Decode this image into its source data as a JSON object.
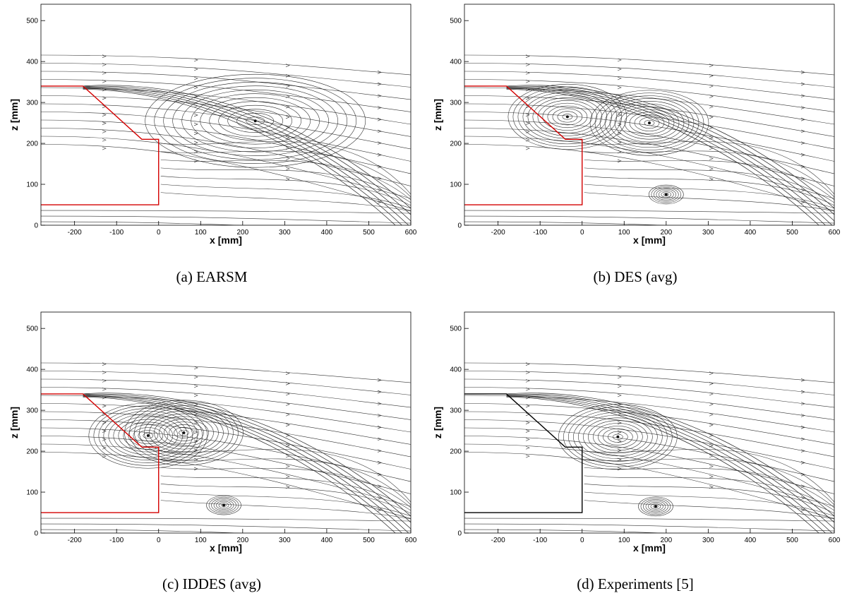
{
  "figure": {
    "panels": [
      {
        "id": "a",
        "caption": "(a)  EARSM",
        "outline_color": "#d40000"
      },
      {
        "id": "b",
        "caption": "(b)  DES (avg)",
        "outline_color": "#d40000"
      },
      {
        "id": "c",
        "caption": "(c)  IDDES (avg)",
        "outline_color": "#d40000"
      },
      {
        "id": "d",
        "caption": "(d)  Experiments [5]",
        "outline_color": "#000000"
      }
    ]
  },
  "chart_data": [
    {
      "type": "streamline-plot",
      "title": "(a)  EARSM",
      "xlabel": "x [mm]",
      "ylabel": "z [mm]",
      "xlim": [
        -280,
        600
      ],
      "ylim": [
        0,
        540
      ],
      "xticks": [
        -200,
        -100,
        0,
        100,
        200,
        300,
        400,
        500,
        600
      ],
      "yticks": [
        0,
        100,
        200,
        300,
        400,
        500
      ],
      "body_outline": [
        [
          -280,
          340
        ],
        [
          -180,
          340
        ],
        [
          -40,
          210
        ],
        [
          0,
          210
        ],
        [
          0,
          50
        ],
        [
          -280,
          50
        ]
      ],
      "vortices": [
        {
          "x": 230,
          "z": 255
        }
      ]
    },
    {
      "type": "streamline-plot",
      "title": "(b)  DES (avg)",
      "xlabel": "x [mm]",
      "ylabel": "z [mm]",
      "xlim": [
        -280,
        600
      ],
      "ylim": [
        0,
        540
      ],
      "xticks": [
        -200,
        -100,
        0,
        100,
        200,
        300,
        400,
        500,
        600
      ],
      "yticks": [
        0,
        100,
        200,
        300,
        400,
        500
      ],
      "body_outline": [
        [
          -280,
          340
        ],
        [
          -180,
          340
        ],
        [
          -40,
          210
        ],
        [
          0,
          210
        ],
        [
          0,
          50
        ],
        [
          -280,
          50
        ]
      ],
      "vortices": [
        {
          "x": -35,
          "z": 265
        },
        {
          "x": 160,
          "z": 250
        },
        {
          "x": 200,
          "z": 75
        }
      ]
    },
    {
      "type": "streamline-plot",
      "title": "(c)  IDDES (avg)",
      "xlabel": "x [mm]",
      "ylabel": "z [mm]",
      "xlim": [
        -280,
        600
      ],
      "ylim": [
        0,
        540
      ],
      "xticks": [
        -200,
        -100,
        0,
        100,
        200,
        300,
        400,
        500,
        600
      ],
      "yticks": [
        0,
        100,
        200,
        300,
        400,
        500
      ],
      "body_outline": [
        [
          -280,
          340
        ],
        [
          -180,
          340
        ],
        [
          -40,
          210
        ],
        [
          0,
          210
        ],
        [
          0,
          50
        ],
        [
          -280,
          50
        ]
      ],
      "vortices": [
        {
          "x": -25,
          "z": 238
        },
        {
          "x": 60,
          "z": 245
        },
        {
          "x": 155,
          "z": 68
        }
      ]
    },
    {
      "type": "streamline-plot",
      "title": "(d)  Experiments [5]",
      "xlabel": "x [mm]",
      "ylabel": "z [mm]",
      "xlim": [
        -280,
        600
      ],
      "ylim": [
        0,
        540
      ],
      "xticks": [
        -200,
        -100,
        0,
        100,
        200,
        300,
        400,
        500,
        600
      ],
      "yticks": [
        0,
        100,
        200,
        300,
        400,
        500
      ],
      "body_outline": [
        [
          -280,
          340
        ],
        [
          -180,
          340
        ],
        [
          -40,
          210
        ],
        [
          0,
          210
        ],
        [
          0,
          50
        ],
        [
          -280,
          50
        ]
      ],
      "vortices": [
        {
          "x": 85,
          "z": 235
        },
        {
          "x": 175,
          "z": 65
        }
      ]
    }
  ]
}
